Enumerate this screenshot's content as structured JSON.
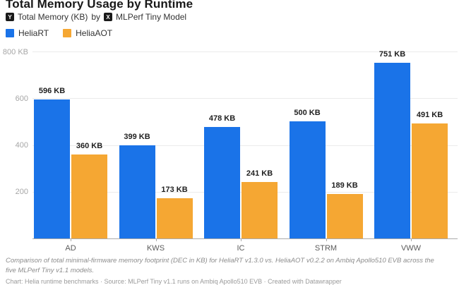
{
  "header": {
    "title": "Total Memory Usage by Runtime",
    "y_badge": "Y",
    "y_axis_label": "Total Memory (KB)",
    "connector": "by",
    "x_badge": "X",
    "x_axis_label": "MLPerf Tiny Model"
  },
  "chart_data": {
    "type": "bar",
    "title": "Total Memory Usage by Runtime",
    "ylabel": "Total Memory (KB)",
    "xlabel": "MLPerf Tiny Model",
    "categories": [
      "AD",
      "KWS",
      "IC",
      "STRM",
      "VWW"
    ],
    "series": [
      {
        "name": "HeliaRT",
        "color": "#1a73e8",
        "values": [
          596,
          399,
          478,
          500,
          751
        ]
      },
      {
        "name": "HeliaAOT",
        "color": "#f5a733",
        "values": [
          360,
          173,
          241,
          189,
          491
        ]
      }
    ],
    "value_label_suffix": " KB",
    "ylim": [
      0,
      800
    ],
    "yticks": [
      {
        "value": 800,
        "label": "800 KB"
      },
      {
        "value": 600,
        "label": "600"
      },
      {
        "value": 400,
        "label": "400"
      },
      {
        "value": 200,
        "label": "200"
      }
    ],
    "grid": true,
    "legend_position": "top-left"
  },
  "footer": {
    "note": "Comparison of total minimal-firmware memory footprint (DEC in KB) for HeliaRT v1.3.0 vs. HeliaAOT v0.2.2 on Ambiq Apollo510 EVB across the five MLPerf Tiny v1.1 models.",
    "attribution": "Chart: Helia runtime benchmarks · Source: MLPerf Tiny v1.1 runs on Ambiq Apollo510 EVB · Created with Datawrapper"
  },
  "colors": {
    "gridline": "#ebebeb",
    "baseline": "#ababab",
    "axis_text": "#a6a6a6",
    "category_text": "#5a5a5a",
    "value_text": "#1f1f1f",
    "footnote_text": "#8c8c8c"
  }
}
